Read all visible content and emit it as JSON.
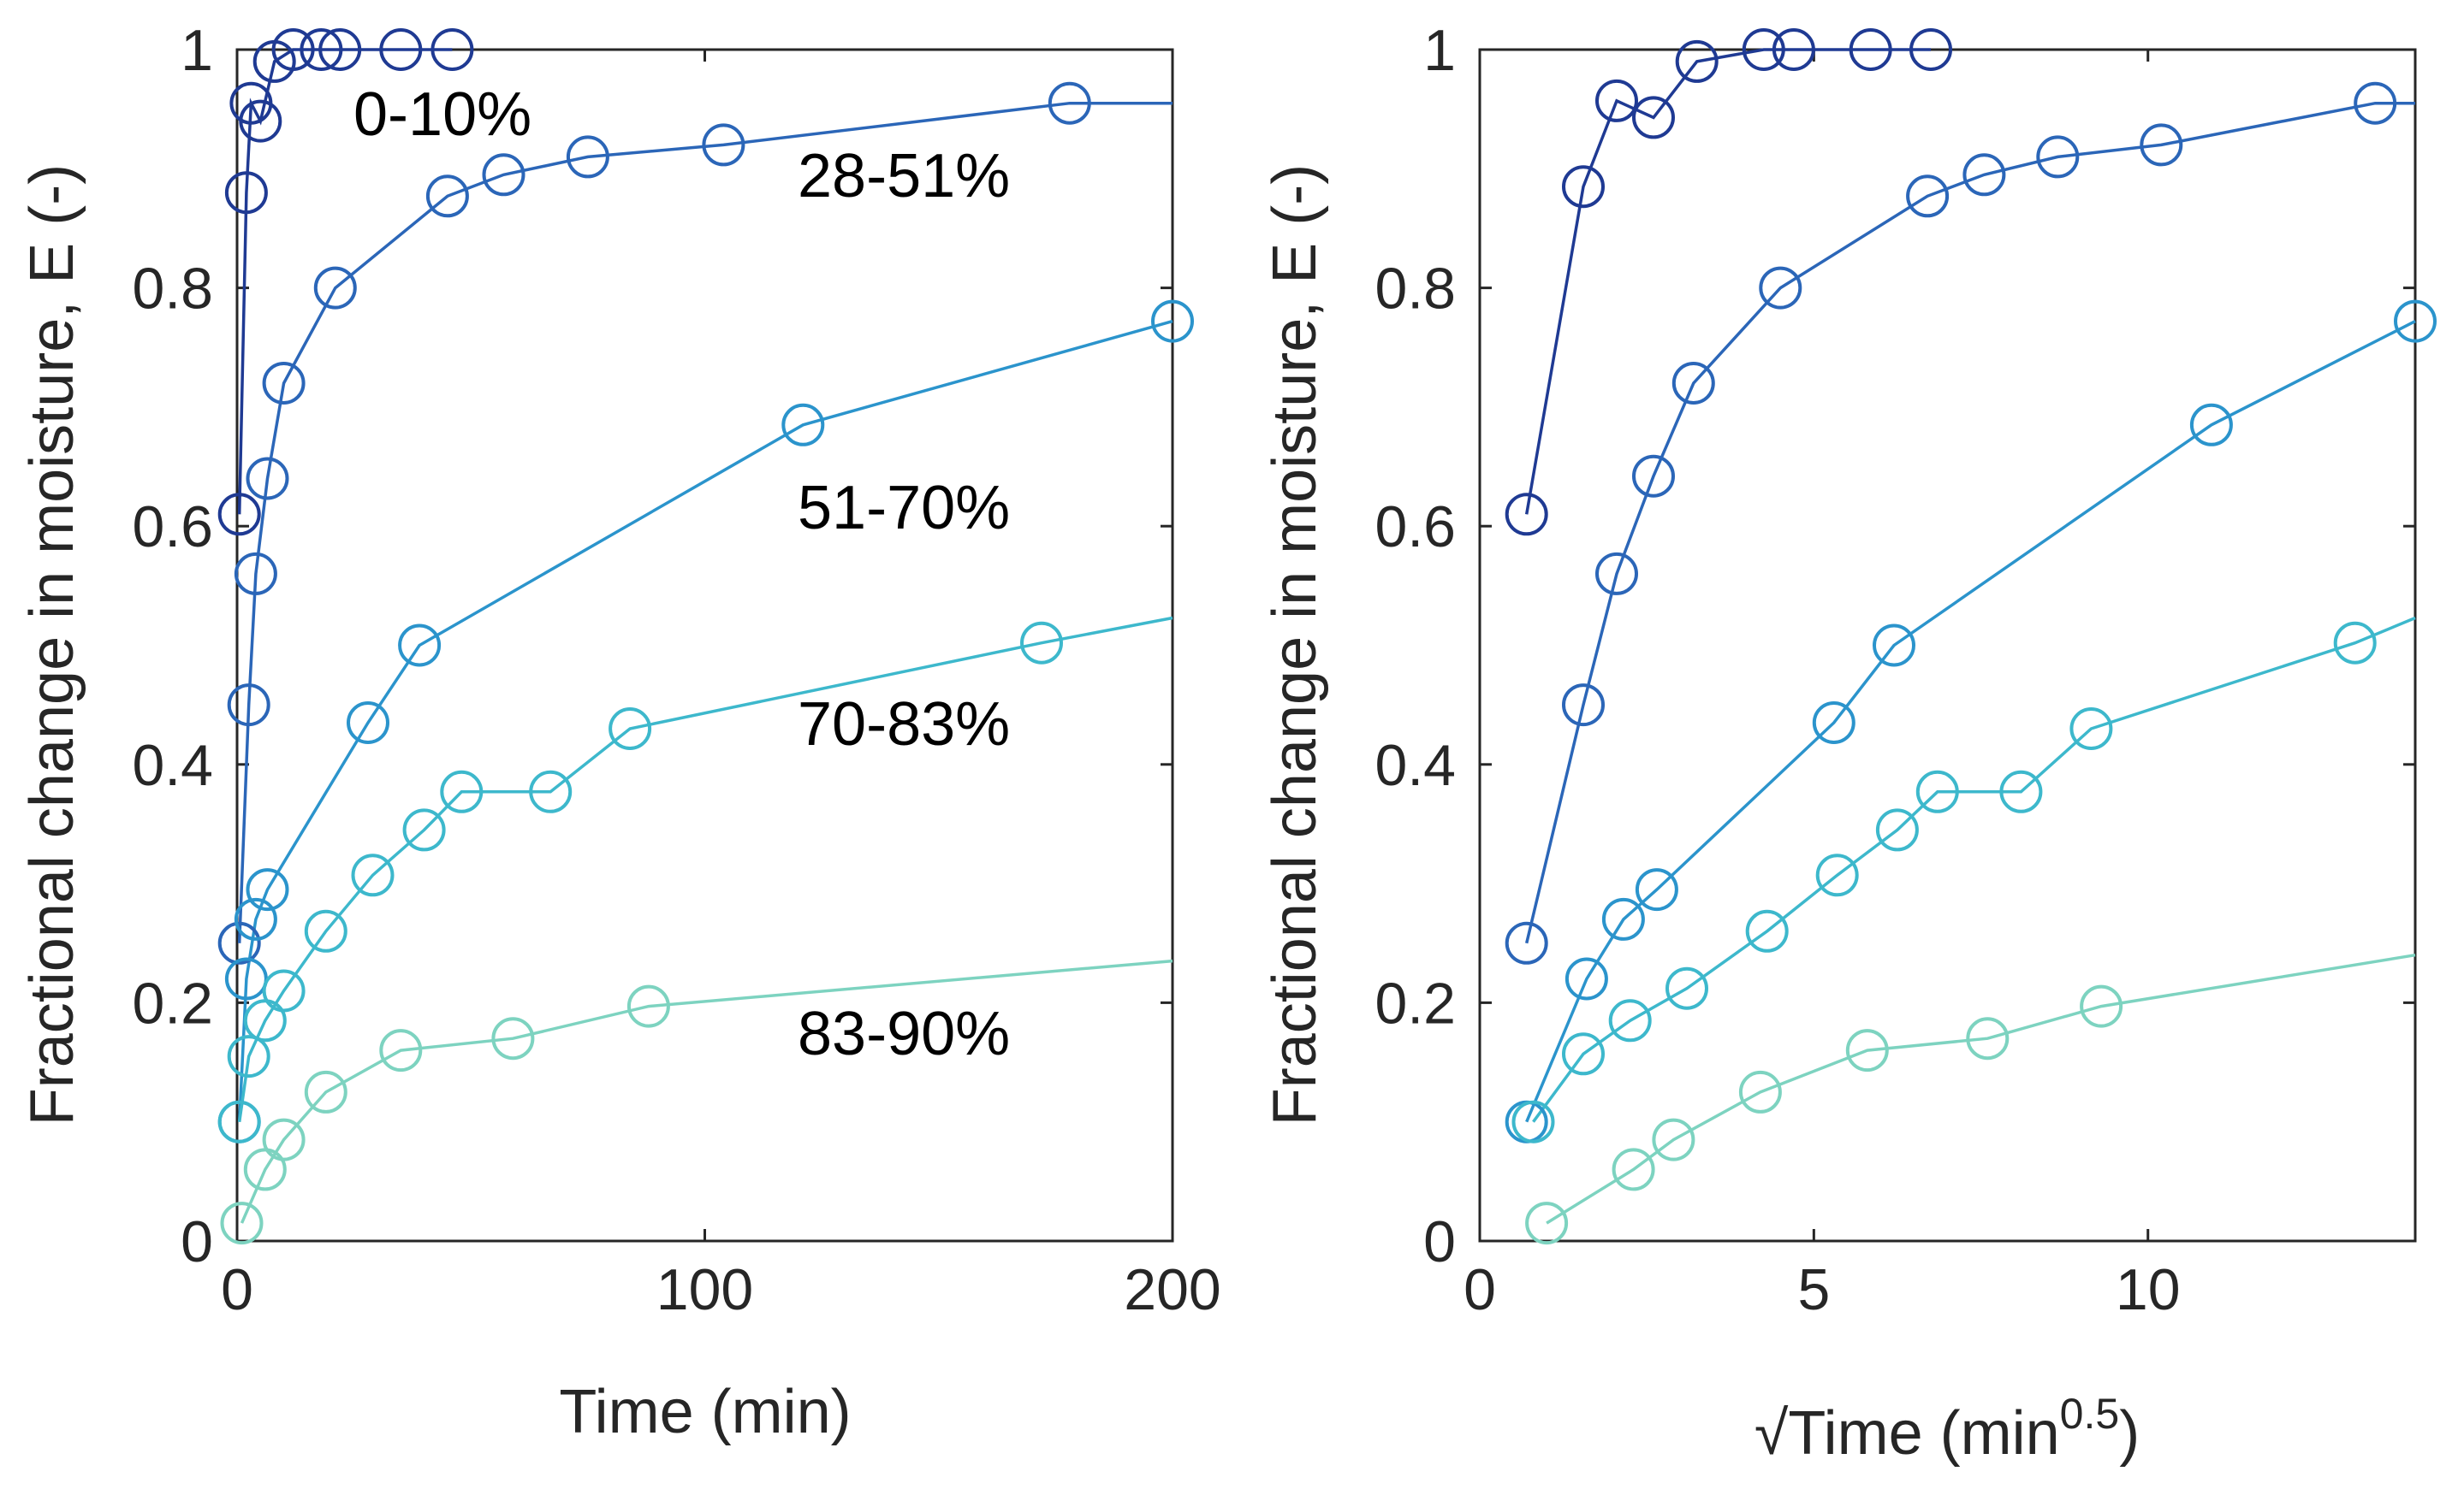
{
  "chart_data": [
    {
      "type": "line",
      "xlabel": "Time (min)",
      "ylabel": "Fractional change in moisture, E (-)",
      "xlim": [
        0,
        200
      ],
      "ylim": [
        0,
        1
      ],
      "xticks": [
        "0",
        "100",
        "200"
      ],
      "yticks": [
        "0",
        "0.2",
        "0.4",
        "0.6",
        "0.8",
        "1"
      ],
      "series": [
        {
          "name": "0-10%",
          "color": "#1f3a93",
          "x": [
            0.5,
            2,
            3,
            5,
            8,
            12,
            18,
            22,
            35,
            46
          ],
          "y": [
            0.61,
            0.88,
            0.955,
            0.94,
            0.99,
            1.0,
            1.0,
            1.0,
            1.0,
            1.0
          ],
          "markers": [
            true,
            true,
            true,
            true,
            true,
            true,
            true,
            true,
            true,
            true
          ]
        },
        {
          "name": "28-51%",
          "color": "#2b66b8",
          "x": [
            0.5,
            2.5,
            4,
            6.5,
            10,
            21,
            45,
            57,
            75,
            104,
            178,
            200
          ],
          "y": [
            0.25,
            0.45,
            0.56,
            0.64,
            0.72,
            0.8,
            0.877,
            0.895,
            0.91,
            0.92,
            0.955,
            0.955
          ],
          "markers": [
            true,
            true,
            true,
            true,
            true,
            true,
            true,
            true,
            true,
            true,
            true,
            false
          ]
        },
        {
          "name": "51-70%",
          "color": "#2b94cc",
          "x": [
            0.5,
            2,
            4,
            6.5,
            28,
            39,
            121,
            200
          ],
          "y": [
            0.1,
            0.22,
            0.27,
            0.295,
            0.435,
            0.5,
            0.685,
            0.772
          ],
          "markers": [
            true,
            true,
            true,
            true,
            true,
            true,
            true,
            true
          ]
        },
        {
          "name": "70-83%",
          "color": "#3db8cc",
          "x": [
            0.5,
            2.5,
            6,
            10,
            19,
            29,
            40,
            48,
            67,
            84,
            172,
            200
          ],
          "y": [
            0.1,
            0.155,
            0.185,
            0.21,
            0.26,
            0.307,
            0.345,
            0.377,
            0.377,
            0.43,
            0.502,
            0.523
          ],
          "markers": [
            true,
            true,
            true,
            true,
            true,
            true,
            true,
            true,
            true,
            true,
            true,
            false
          ]
        },
        {
          "name": "83-90%",
          "color": "#7dd3c0",
          "x": [
            1,
            6,
            10,
            19,
            35,
            59,
            88,
            200
          ],
          "y": [
            0.015,
            0.06,
            0.085,
            0.125,
            0.16,
            0.17,
            0.197,
            0.235
          ],
          "markers": [
            true,
            true,
            true,
            true,
            true,
            true,
            true,
            false
          ]
        }
      ],
      "annotations": [
        "0-10%",
        "28-51%",
        "51-70%",
        "70-83%",
        "83-90%"
      ]
    },
    {
      "type": "line",
      "xlabel": "√Time (min",
      "xlabel_superscript": "0.5",
      "xlabel_suffix": ")",
      "ylabel": "Fractional change in moisture, E (-)",
      "xlim": [
        0,
        14
      ],
      "ylim": [
        0,
        1
      ],
      "xticks": [
        "0",
        "5",
        "10"
      ],
      "yticks": [
        "0",
        "0.2",
        "0.4",
        "0.6",
        "0.8",
        "1"
      ],
      "series": [
        {
          "name": "0-10%",
          "color": "#1f3a93",
          "x": [
            0.7,
            1.55,
            2.05,
            2.6,
            3.25,
            4.25,
            4.7,
            5.85,
            6.75
          ],
          "y": [
            0.61,
            0.885,
            0.957,
            0.943,
            0.99,
            1.0,
            1.0,
            1.0,
            1.0
          ],
          "markers": [
            true,
            true,
            true,
            true,
            true,
            true,
            true,
            true,
            true
          ]
        },
        {
          "name": "28-51%",
          "color": "#2b66b8",
          "x": [
            0.7,
            1.55,
            2.05,
            2.6,
            3.2,
            4.5,
            6.7,
            7.55,
            8.65,
            10.2,
            13.4,
            14
          ],
          "y": [
            0.25,
            0.45,
            0.56,
            0.642,
            0.72,
            0.8,
            0.877,
            0.895,
            0.91,
            0.92,
            0.955,
            0.955
          ],
          "markers": [
            true,
            true,
            true,
            true,
            true,
            true,
            true,
            true,
            true,
            true,
            true,
            false
          ]
        },
        {
          "name": "51-70%",
          "color": "#2b94cc",
          "x": [
            0.7,
            1.6,
            2.15,
            2.65,
            5.3,
            6.2,
            10.95,
            14
          ],
          "y": [
            0.1,
            0.22,
            0.27,
            0.295,
            0.435,
            0.5,
            0.685,
            0.772
          ],
          "markers": [
            true,
            true,
            true,
            true,
            true,
            true,
            true,
            true
          ]
        },
        {
          "name": "70-83%",
          "color": "#3db8cc",
          "x": [
            0.8,
            1.55,
            2.25,
            3.1,
            4.3,
            5.35,
            6.25,
            6.85,
            8.1,
            9.15,
            13.1,
            14
          ],
          "y": [
            0.1,
            0.157,
            0.185,
            0.212,
            0.26,
            0.307,
            0.345,
            0.377,
            0.377,
            0.43,
            0.502,
            0.523
          ],
          "markers": [
            true,
            true,
            true,
            true,
            true,
            true,
            true,
            true,
            true,
            true,
            true,
            false
          ]
        },
        {
          "name": "83-90%",
          "color": "#7dd3c0",
          "x": [
            1.0,
            2.3,
            2.9,
            4.2,
            5.8,
            7.6,
            9.3,
            14
          ],
          "y": [
            0.015,
            0.06,
            0.085,
            0.125,
            0.16,
            0.17,
            0.197,
            0.24
          ],
          "markers": [
            true,
            true,
            true,
            true,
            true,
            true,
            true,
            false
          ]
        }
      ]
    }
  ]
}
